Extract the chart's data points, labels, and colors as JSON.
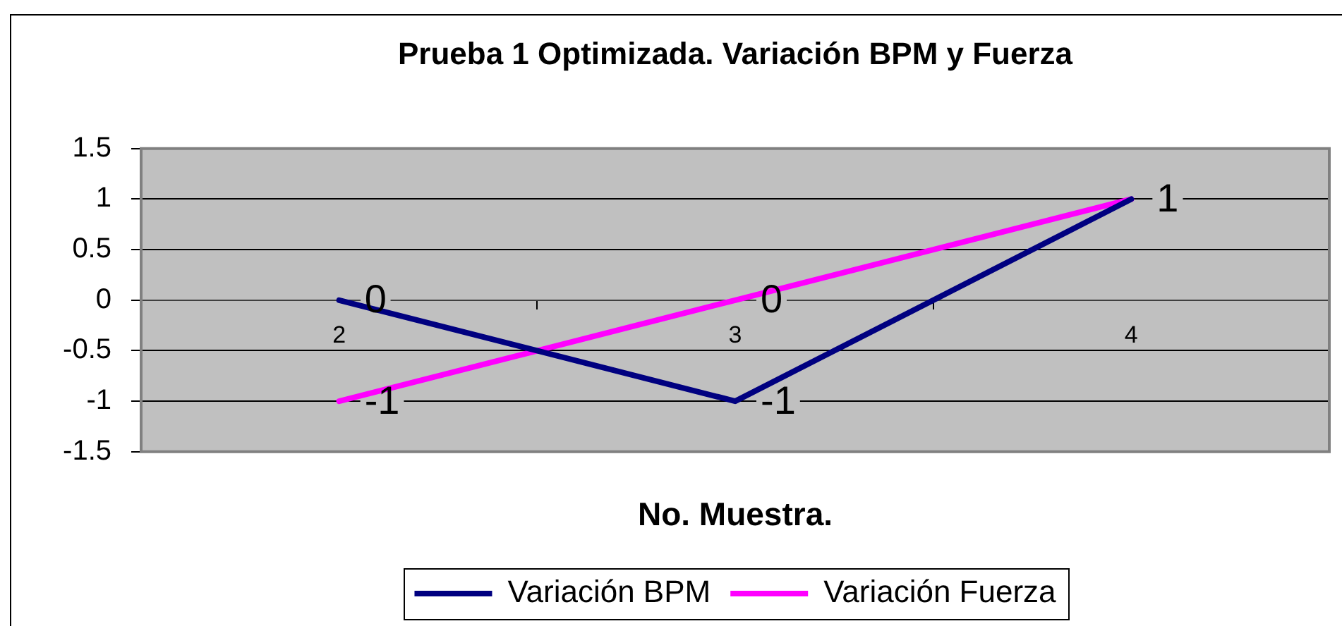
{
  "chart_data": {
    "type": "line",
    "title": "Prueba 1 Optimizada. Variación BPM y Fuerza",
    "xlabel": "No. Muestra.",
    "categories": [
      "2",
      "3",
      "4"
    ],
    "series": [
      {
        "name": "Variación BPM",
        "color": "#000080",
        "values": [
          0,
          -1,
          1
        ],
        "value_labels": [
          "0",
          "-1",
          "1"
        ]
      },
      {
        "name": "Variación Fuerza",
        "color": "#ff00ff",
        "values": [
          -1,
          0,
          1
        ],
        "value_labels": [
          "-1",
          "0",
          null
        ]
      }
    ],
    "ylim": [
      -1.5,
      1.5
    ],
    "yticks": [
      -1.5,
      -1,
      -0.5,
      0,
      0.5,
      1,
      1.5
    ],
    "grid": "y",
    "legend": "bottom"
  }
}
